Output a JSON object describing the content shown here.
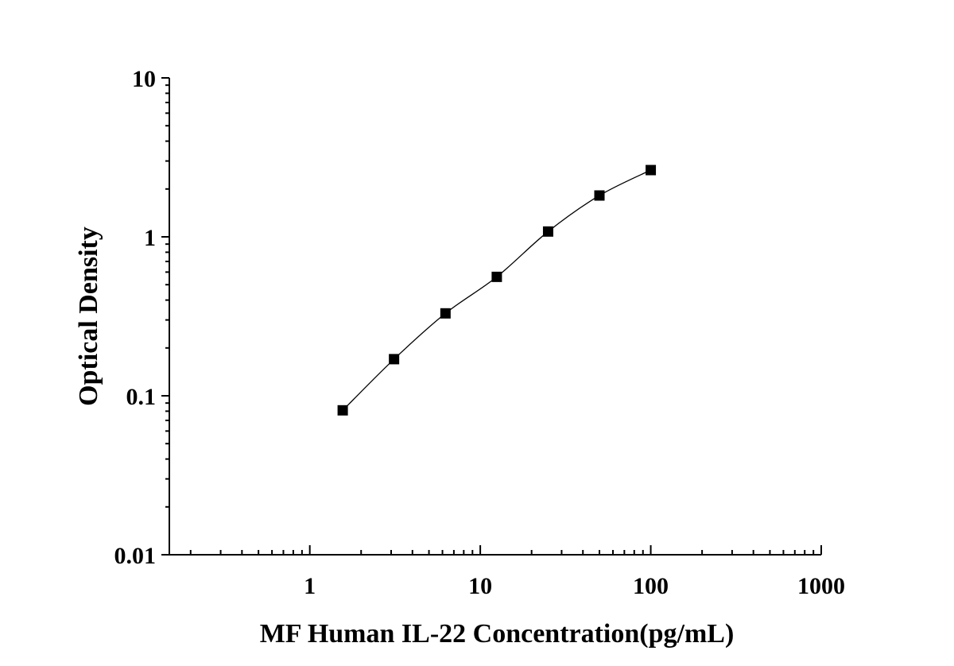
{
  "chart_data": {
    "type": "scatter",
    "xlabel": "MF Human IL-22 Concentration(pg/mL)",
    "ylabel": "Optical Density",
    "xscale": "log",
    "yscale": "log",
    "xlim": [
      0.15,
      1000
    ],
    "ylim": [
      0.01,
      10
    ],
    "x_ticks": [
      1,
      10,
      100,
      1000
    ],
    "x_tick_labels": [
      "1",
      "10",
      "100",
      "1000"
    ],
    "y_ticks": [
      0.01,
      0.1,
      1,
      10
    ],
    "y_tick_labels": [
      "0.01",
      "0.1",
      "1",
      "10"
    ],
    "grid": false,
    "legend": "none",
    "fit_curve": true,
    "series": [
      {
        "marker": "square",
        "color": "#000000",
        "x": [
          1.56,
          3.12,
          6.25,
          12.5,
          25,
          50,
          100
        ],
        "y": [
          0.081,
          0.17,
          0.33,
          0.56,
          1.08,
          1.82,
          2.63
        ]
      }
    ]
  }
}
